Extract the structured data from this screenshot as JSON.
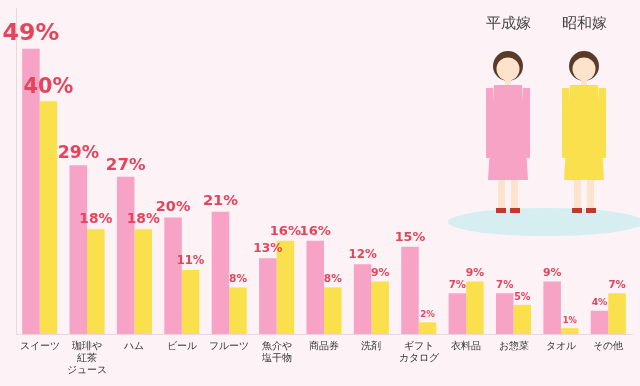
{
  "chart_data": {
    "type": "bar",
    "categories": [
      "スイーツ",
      [
        "珈琲や",
        "紅茶",
        "ジュース"
      ],
      "ハム",
      "ビール",
      "フルーツ",
      [
        "魚介や",
        "塩干物"
      ],
      "商品券",
      "洗剤",
      [
        "ギフト",
        "カタログ"
      ],
      "衣料品",
      "お惣菜",
      "タオル",
      "その他"
    ],
    "series": [
      {
        "name": "平成嫁",
        "color": "#f7a3c6",
        "values": [
          49,
          29,
          27,
          20,
          21,
          13,
          16,
          12,
          15,
          7,
          7,
          9,
          4
        ],
        "value_labels": [
          "49%",
          "29%",
          "27%",
          "20%",
          "21%",
          "13%",
          "16%",
          "12%",
          "15%",
          "7%",
          "7%",
          "9%",
          "4%"
        ]
      },
      {
        "name": "昭和嫁",
        "color": "#fbe04e",
        "values": [
          40,
          18,
          18,
          11,
          8,
          16,
          8,
          9,
          2,
          9,
          5,
          1,
          7
        ],
        "value_labels": [
          "40%",
          "18%",
          "18%",
          "11%",
          "8%",
          "16%",
          "8%",
          "9%",
          "2%",
          "9%",
          "5%",
          "1%",
          "7%"
        ]
      }
    ],
    "ylim": [
      0,
      56
    ],
    "grid": false,
    "legend": "top-right",
    "data_labels": true,
    "tick_labels": "x"
  }
}
